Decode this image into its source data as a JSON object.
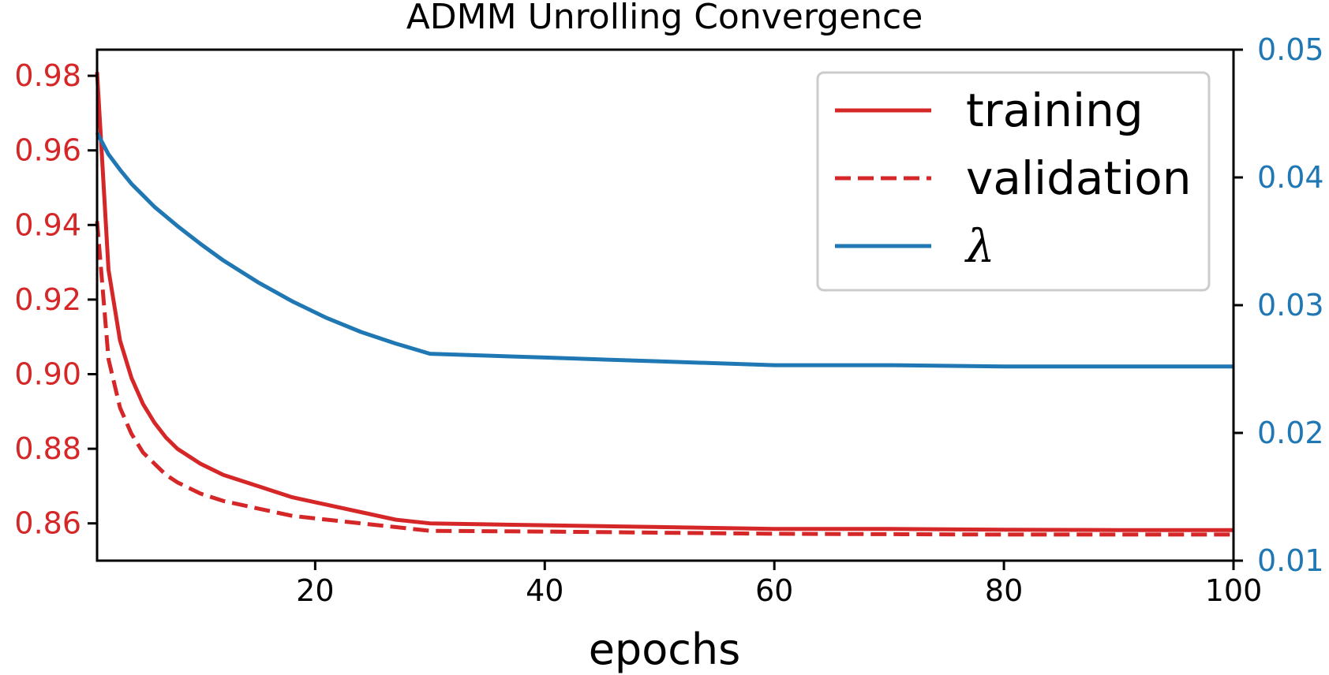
{
  "chart_data": {
    "type": "line",
    "title": "ADMM Unrolling Convergence",
    "xlabel": "epochs",
    "ylabel": "",
    "y2label": "",
    "xlim": [
      1,
      100
    ],
    "ylim": [
      0.85,
      0.987
    ],
    "y2lim": [
      0.01,
      0.05
    ],
    "x_ticks": [
      20,
      40,
      60,
      80,
      100
    ],
    "y_ticks": [
      0.86,
      0.88,
      0.9,
      0.92,
      0.94,
      0.96,
      0.98
    ],
    "y2_ticks": [
      0.01,
      0.02,
      0.03,
      0.04,
      0.05
    ],
    "grid": false,
    "legend_position": "top-right",
    "colors": {
      "red": "#d62728",
      "blue": "#1f77b4"
    },
    "series": [
      {
        "name": "training",
        "axis": "left",
        "color": "#d62728",
        "style": "solid",
        "x": [
          1,
          2,
          3,
          4,
          5,
          6,
          7,
          8,
          10,
          12,
          15,
          18,
          21,
          24,
          27,
          30,
          40,
          50,
          60,
          70,
          80,
          90,
          100
        ],
        "values": [
          0.981,
          0.928,
          0.909,
          0.899,
          0.892,
          0.887,
          0.883,
          0.88,
          0.876,
          0.873,
          0.87,
          0.867,
          0.865,
          0.863,
          0.861,
          0.86,
          0.8595,
          0.859,
          0.8585,
          0.8585,
          0.8583,
          0.8582,
          0.8582
        ]
      },
      {
        "name": "validation",
        "axis": "left",
        "color": "#d62728",
        "style": "dashed",
        "x": [
          1,
          2,
          3,
          4,
          5,
          6,
          7,
          8,
          10,
          12,
          15,
          18,
          21,
          24,
          27,
          30,
          40,
          50,
          60,
          70,
          80,
          90,
          100
        ],
        "values": [
          0.941,
          0.904,
          0.891,
          0.884,
          0.879,
          0.876,
          0.873,
          0.871,
          0.868,
          0.866,
          0.864,
          0.862,
          0.861,
          0.86,
          0.859,
          0.858,
          0.8578,
          0.8575,
          0.8572,
          0.8571,
          0.857,
          0.857,
          0.857
        ]
      },
      {
        "name": "λ",
        "axis": "right",
        "color": "#1f77b4",
        "style": "solid",
        "x": [
          1,
          2,
          3,
          4,
          5,
          6,
          8,
          10,
          12,
          15,
          18,
          21,
          24,
          27,
          30,
          40,
          50,
          60,
          70,
          80,
          90,
          100
        ],
        "values": [
          0.0435,
          0.0418,
          0.0406,
          0.0395,
          0.0386,
          0.0377,
          0.0362,
          0.0348,
          0.0335,
          0.0318,
          0.0303,
          0.029,
          0.0279,
          0.027,
          0.0262,
          0.0259,
          0.0256,
          0.0253,
          0.0253,
          0.0252,
          0.0252,
          0.0252
        ]
      }
    ]
  }
}
